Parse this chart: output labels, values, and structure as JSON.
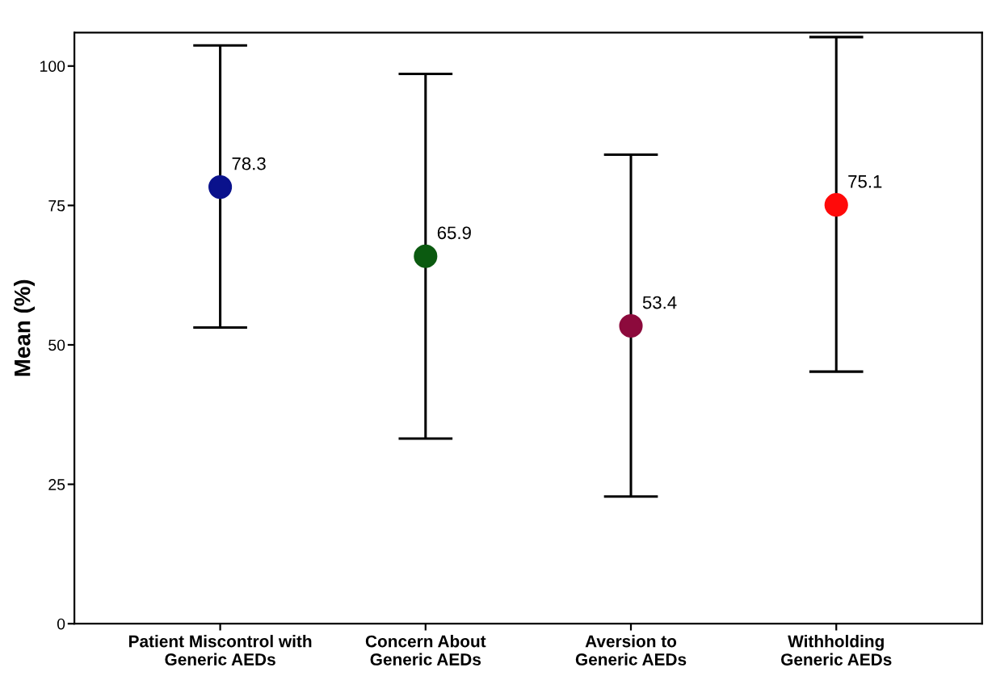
{
  "chart_data": {
    "type": "scatter",
    "ylabel": "Mean (%)",
    "categories": [
      "Patient Miscontrol with\nGeneric AEDs",
      "Concern About\nGeneric AEDs",
      "Aversion to\nGeneric AEDs",
      "Withholding\nGeneric AEDs"
    ],
    "values": [
      78.3,
      65.9,
      53.4,
      75.1
    ],
    "colors": [
      "#0a128c",
      "#0b5a10",
      "#8c0a3c",
      "#ff0a0a"
    ],
    "errors": [
      [
        53.1,
        103.7
      ],
      [
        33.2,
        98.6
      ],
      [
        22.8,
        84.1
      ],
      [
        45.2,
        105.2
      ]
    ],
    "data_labels": true,
    "marker": "circle",
    "grid": false,
    "legend": false,
    "ylim": [
      0,
      106
    ],
    "yticks": [
      0,
      25,
      50,
      75,
      100
    ]
  }
}
